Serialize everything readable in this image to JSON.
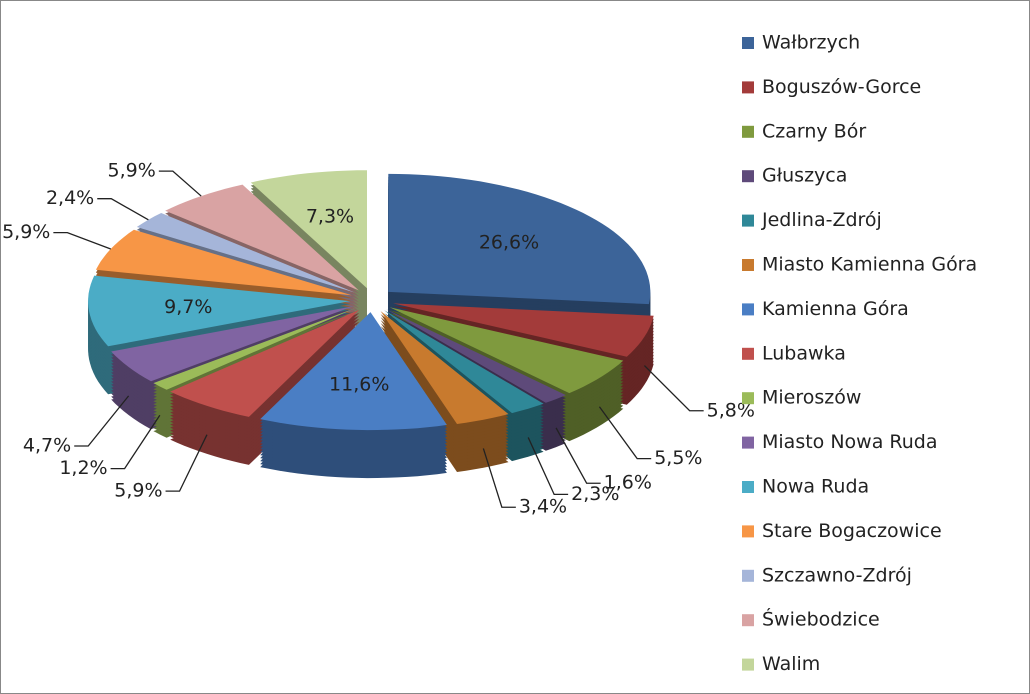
{
  "chart_data": {
    "type": "pie",
    "categories": [
      "Wałbrzych",
      "Boguszów-Gorce",
      "Czarny Bór",
      "Głuszyca",
      "Jedlina-Zdrój",
      "Miasto Kamienna Góra",
      "Kamienna Góra",
      "Lubawka",
      "Mieroszów",
      "Miasto Nowa Ruda",
      "Nowa Ruda",
      "Stare Bogaczowice",
      "Szczawno-Zdrój",
      "Świebodzice",
      "Walim"
    ],
    "values": [
      26.6,
      5.8,
      5.5,
      1.6,
      2.3,
      3.4,
      11.6,
      5.9,
      1.2,
      4.7,
      9.7,
      5.9,
      2.4,
      5.9,
      7.3
    ],
    "value_labels": [
      "26,6%",
      "5,8%",
      "5,5%",
      "1,6%",
      "2,3%",
      "3,4%",
      "11,6%",
      "5,9%",
      "1,2%",
      "4,7%",
      "9,7%",
      "5,9%",
      "2,4%",
      "5,9%",
      "7,3%"
    ],
    "colors": [
      "#3C6499",
      "#A33B3A",
      "#7F9A3E",
      "#5E4A7A",
      "#2F8898",
      "#C87A2E",
      "#4A7EC4",
      "#C0504D",
      "#9BBB59",
      "#8064A2",
      "#4BACC6",
      "#F79646",
      "#A5B5D9",
      "#D9A3A3",
      "#C3D69B"
    ],
    "legend": "right"
  }
}
